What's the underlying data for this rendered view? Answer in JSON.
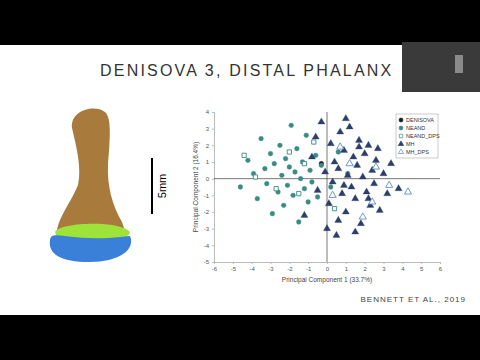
{
  "chart_data": {
    "type": "scatter",
    "title": "DENISOVA 3, DISTAL PHALANX",
    "x_label": "Principal Component 1 (33.7%)",
    "y_label": "Principal Component 2 (16.4%)",
    "annotations": [
      "5mm",
      "BENNETT ET AL., 2019"
    ],
    "xlim": [
      -6,
      6
    ],
    "xticks": [
      -6,
      -5,
      -4,
      -3,
      -2,
      -1,
      0,
      1,
      2,
      3,
      4,
      5,
      6
    ],
    "ylim": [
      -5,
      4
    ],
    "yticks": [
      -5,
      -4,
      -3,
      -2,
      -1,
      0,
      1,
      2,
      3,
      4
    ],
    "legend": "upper right",
    "series": [
      {
        "name": "DENISOVA",
        "color": "#1a1a1a",
        "marker": "circle",
        "x": [
          -0.3
        ],
        "values": [
          0.9
        ]
      },
      {
        "name": "NEAND",
        "color": "#3a8c83",
        "marker": "circle",
        "x": [
          -4.6,
          -4.2,
          -3.9,
          -3.7,
          -3.5,
          -3.3,
          -3.2,
          -3.0,
          -2.9,
          -2.8,
          -2.6,
          -2.5,
          -2.4,
          -2.3,
          -2.2,
          -2.1,
          -2.0,
          -1.9,
          -1.8,
          -1.7,
          -1.6,
          -1.5,
          -1.4,
          -1.3,
          -1.2,
          -1.1,
          -1.0,
          -0.9,
          -0.8,
          -0.6,
          -0.5,
          -0.3,
          0.2,
          0.6,
          1.1
        ],
        "values": [
          -0.5,
          1.1,
          0.3,
          -1.2,
          2.4,
          0.6,
          -0.3,
          1.5,
          -2.1,
          0.9,
          -0.8,
          2.0,
          0.2,
          -1.6,
          1.2,
          -0.4,
          0.7,
          3.2,
          -1.0,
          0.4,
          1.8,
          -2.6,
          0.0,
          1.0,
          -0.6,
          2.6,
          -1.4,
          0.5,
          -0.2,
          1.4,
          -1.1,
          0.8,
          -0.5,
          1.6,
          0.3
        ]
      },
      {
        "name": "NEAND_DPS",
        "color": "#3a8c83",
        "marker": "square-open",
        "x": [
          -3.8,
          -2.7,
          -2.0,
          -1.5,
          -0.7,
          0.4,
          -4.4,
          -1.2
        ],
        "values": [
          0.1,
          -0.6,
          1.6,
          -0.9,
          2.2,
          -1.8,
          1.4,
          0.9
        ]
      },
      {
        "name": "MH",
        "color": "#2b3f6b",
        "marker": "triangle",
        "x": [
          -1.2,
          -0.8,
          -0.5,
          -0.3,
          -0.1,
          0.1,
          0.2,
          0.3,
          0.4,
          0.5,
          0.6,
          0.7,
          0.8,
          0.9,
          1.0,
          1.1,
          1.2,
          1.3,
          1.4,
          1.5,
          1.6,
          1.7,
          1.8,
          1.9,
          2.0,
          2.1,
          2.2,
          2.3,
          2.4,
          2.5,
          2.6,
          2.8,
          3.0,
          3.2,
          3.4,
          0.0,
          0.6,
          1.0,
          1.5,
          2.2,
          -0.6,
          0.9,
          1.7,
          2.7,
          3.8
        ],
        "values": [
          -2.2,
          1.3,
          -0.7,
          3.4,
          0.4,
          -1.5,
          2.1,
          -0.2,
          1.0,
          -3.4,
          0.6,
          2.8,
          -0.9,
          1.7,
          -2.0,
          0.2,
          3.1,
          -0.5,
          1.3,
          -1.2,
          0.8,
          2.3,
          -2.7,
          0.1,
          1.5,
          -0.8,
          2.0,
          -1.6,
          0.5,
          -0.3,
          1.1,
          -1.9,
          0.3,
          -0.9,
          0.9,
          -3.0,
          -2.5,
          3.6,
          -3.2,
          -1.2,
          2.5,
          -0.4,
          1.9,
          1.8,
          -0.6
        ]
      },
      {
        "name": "MH_DPS",
        "color": "#5b8fc7",
        "marker": "triangle-open",
        "x": [
          0.3,
          1.2,
          1.9,
          2.6,
          3.3,
          0.7,
          2.4,
          4.3
        ],
        "values": [
          -1.0,
          0.9,
          -2.3,
          0.7,
          -0.4,
          1.9,
          -1.4,
          -0.8
        ]
      }
    ]
  }
}
